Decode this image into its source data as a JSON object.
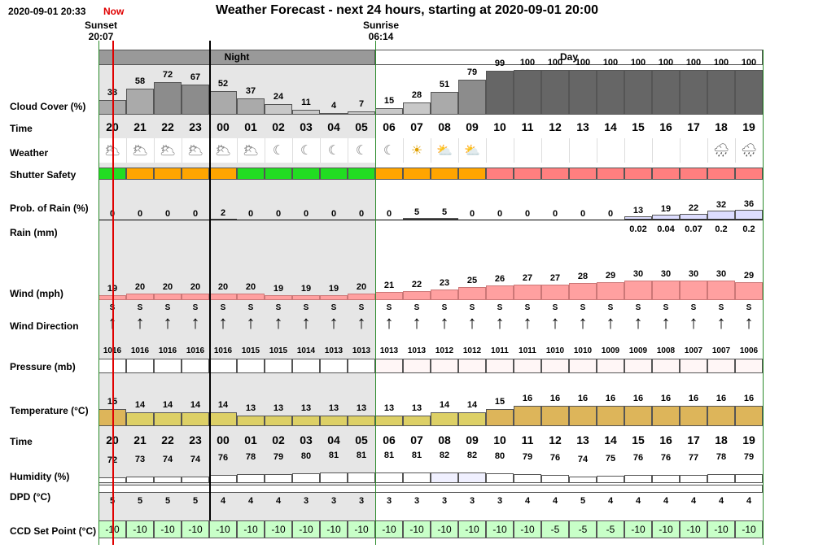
{
  "header": {
    "timestamp": "2020-09-01 20:33",
    "now_label": "Now",
    "title": "Weather Forecast - next 24 hours, starting at 2020-09-01 20:00",
    "sunset_label": "Sunset",
    "sunset_time": "20:07",
    "sunrise_label": "Sunrise",
    "sunrise_time": "06:14",
    "night_label": "Night",
    "day_label": "Day"
  },
  "labels": {
    "cloud": "Cloud Cover (%)",
    "time": "Time",
    "weather": "Weather",
    "shutter": "Shutter Safety",
    "prob_rain": "Prob. of Rain (%)",
    "rain": "Rain (mm)",
    "wind": "Wind (mph)",
    "wind_dir": "Wind Direction",
    "pressure": "Pressure (mb)",
    "temperature": "Temperature (°C)",
    "time2": "Time",
    "humidity": "Humidity (%)",
    "dpd": "DPD (°C)",
    "ccd": "CCD Set Point (°C)"
  },
  "hours": [
    "20",
    "21",
    "22",
    "23",
    "00",
    "01",
    "02",
    "03",
    "04",
    "05",
    "06",
    "07",
    "08",
    "09",
    "10",
    "11",
    "12",
    "13",
    "14",
    "15",
    "16",
    "17",
    "18",
    "19"
  ],
  "cloud_cover": [
    33,
    58,
    72,
    67,
    52,
    37,
    24,
    11,
    4,
    7,
    15,
    28,
    51,
    79,
    99,
    100,
    100,
    100,
    100,
    100,
    100,
    100,
    100,
    100
  ],
  "weather_icons": [
    "partly-cloudy-night",
    "partly-cloudy-night",
    "partly-cloudy-night",
    "partly-cloudy-night",
    "partly-cloudy-night",
    "partly-cloudy-night",
    "clear-night",
    "clear-night",
    "clear-night",
    "clear-night",
    "clear-night",
    "sunny",
    "partly-cloudy-day",
    "partly-cloudy-day",
    "",
    "",
    "",
    "",
    "",
    "",
    "",
    "",
    "rain-cloud",
    "rain-cloud"
  ],
  "shutter_safety": [
    "safe",
    "unsafe-marginal",
    "unsafe-marginal",
    "unsafe-marginal",
    "unsafe-marginal",
    "safe",
    "safe",
    "safe",
    "safe",
    "safe",
    "unsafe-marginal",
    "unsafe-marginal",
    "unsafe-marginal",
    "unsafe-marginal",
    "unsafe",
    "unsafe",
    "unsafe",
    "unsafe",
    "unsafe",
    "unsafe",
    "unsafe",
    "unsafe",
    "unsafe",
    "unsafe"
  ],
  "shutter_colors": {
    "safe": "#22dd22",
    "unsafe-marginal": "#ffa500",
    "unsafe": "#ff7f7f"
  },
  "prob_rain": [
    "0",
    "0",
    "0",
    "0",
    "2",
    "0",
    "0",
    "0",
    "0",
    "0",
    "0",
    "5",
    "5",
    "0",
    "0",
    "0",
    "0",
    "0",
    "0",
    "13",
    "19",
    "22",
    "32",
    "36"
  ],
  "rain_mm": [
    "",
    "",
    "",
    "",
    "",
    "",
    "",
    "",
    "",
    "",
    "",
    "",
    "",
    "",
    "",
    "",
    "",
    "",
    "",
    "0.02",
    "0.04",
    "0.07",
    "0.2",
    "0.2"
  ],
  "wind_mph": [
    19,
    20,
    20,
    20,
    20,
    20,
    19,
    19,
    19,
    20,
    21,
    22,
    23,
    25,
    26,
    27,
    27,
    28,
    29,
    30,
    30,
    30,
    30,
    29
  ],
  "wind_direction": [
    "S",
    "S",
    "S",
    "S",
    "S",
    "S",
    "S",
    "S",
    "S",
    "S",
    "S",
    "S",
    "S",
    "S",
    "S",
    "S",
    "S",
    "S",
    "S",
    "S",
    "S",
    "S",
    "S",
    "S"
  ],
  "pressure_mb": [
    "1016",
    "1016",
    "1016",
    "1016",
    "1016",
    "1015",
    "1015",
    "1014",
    "1013",
    "1013",
    "1013",
    "1013",
    "1012",
    "1012",
    "1011",
    "1011",
    "1010",
    "1010",
    "1009",
    "1009",
    "1008",
    "1007",
    "1007",
    "1006"
  ],
  "temperature_c": [
    15,
    14,
    14,
    14,
    14,
    13,
    13,
    13,
    13,
    13,
    13,
    13,
    14,
    14,
    15,
    16,
    16,
    16,
    16,
    16,
    16,
    16,
    16,
    16
  ],
  "humidity_pct": [
    "72",
    "73",
    "74",
    "74",
    "76",
    "78",
    "79",
    "80",
    "81",
    "81",
    "81",
    "81",
    "82",
    "82",
    "80",
    "79",
    "76",
    "74",
    "75",
    "76",
    "76",
    "77",
    "78",
    "79"
  ],
  "dpd_c": [
    "5",
    "5",
    "5",
    "5",
    "4",
    "4",
    "4",
    "3",
    "3",
    "3",
    "3",
    "3",
    "3",
    "3",
    "3",
    "4",
    "4",
    "5",
    "4",
    "4",
    "4",
    "4",
    "4",
    "4"
  ],
  "ccd_set_point": [
    "-10",
    "-10",
    "-10",
    "-10",
    "-10",
    "-10",
    "-10",
    "-10",
    "-10",
    "-10",
    "-10",
    "-10",
    "-10",
    "-10",
    "-10",
    "-10",
    "-5",
    "-5",
    "-5",
    "-10",
    "-10",
    "-10",
    "-10",
    "-10"
  ]
}
